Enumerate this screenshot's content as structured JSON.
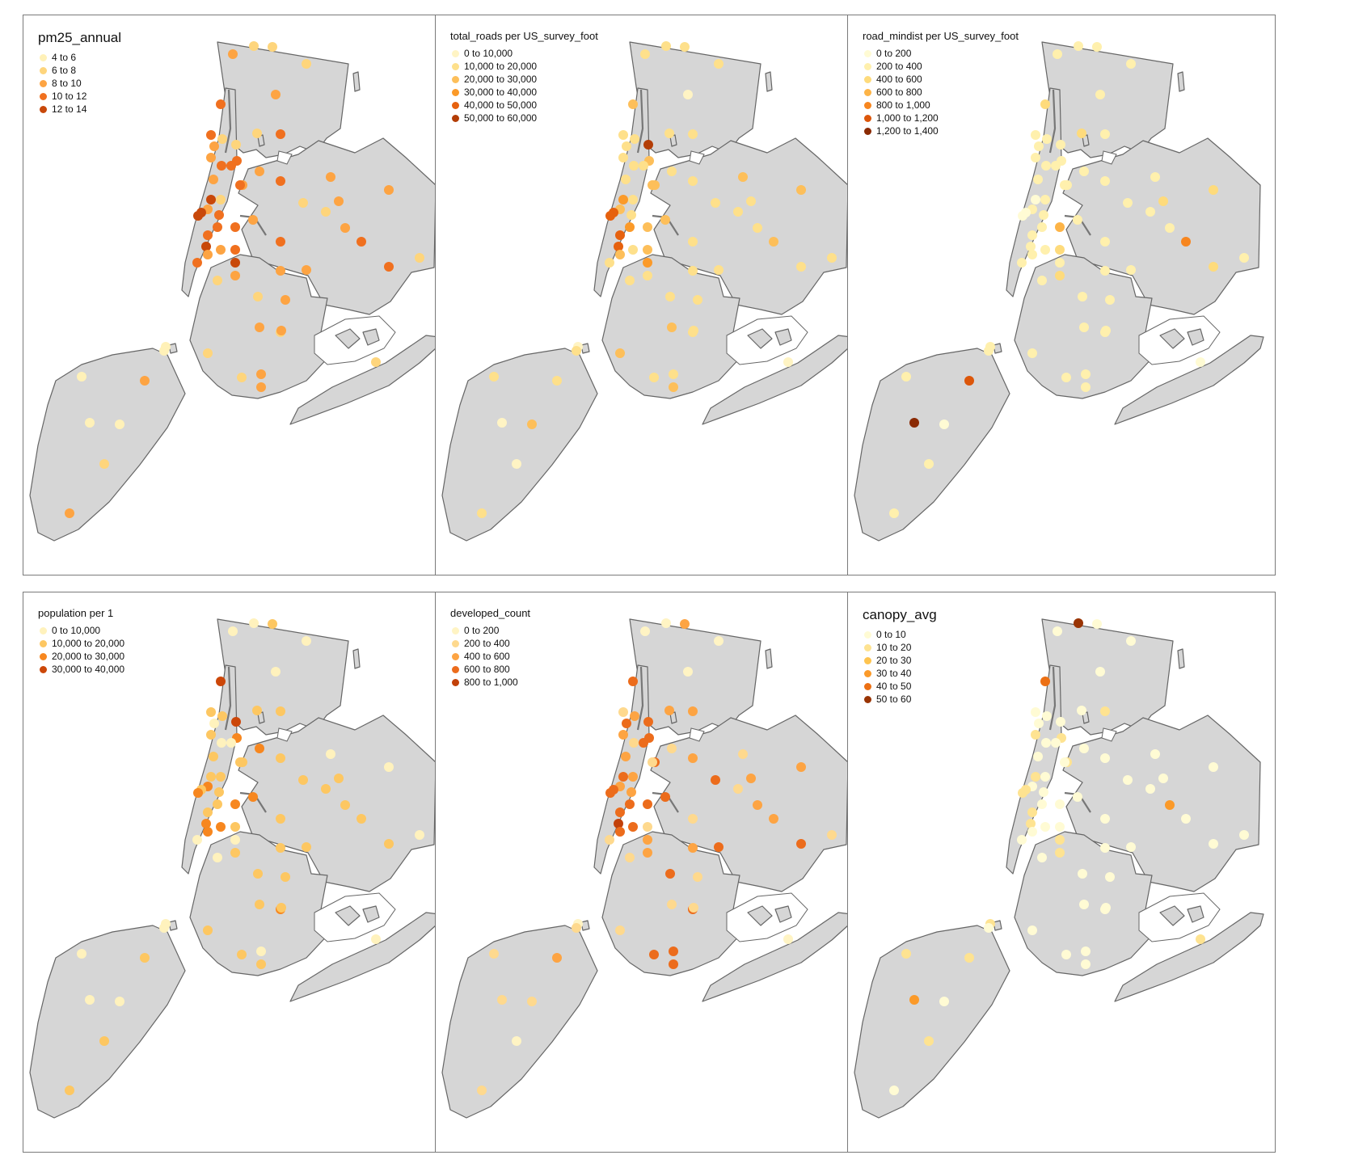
{
  "panels": [
    {
      "title": "pm25_annual",
      "legend": [
        {
          "label": "4 to 6",
          "color": "#fff1b8"
        },
        {
          "label": "6 to 8",
          "color": "#fed57c"
        },
        {
          "label": "8 to 10",
          "color": "#fda443"
        },
        {
          "label": "10 to 12",
          "color": "#f0701f"
        },
        {
          "label": "12 to 14",
          "color": "#c8480a"
        }
      ],
      "points": [
        2,
        1,
        1,
        1,
        2,
        3,
        1,
        1,
        3,
        3,
        1,
        2,
        3,
        2,
        2,
        3,
        3,
        2,
        2,
        3,
        2,
        3,
        4,
        1,
        2,
        3,
        4,
        4,
        2,
        3,
        3,
        3,
        4,
        2,
        3,
        3,
        2,
        4,
        1,
        2,
        3,
        1,
        2,
        1,
        2,
        3,
        2,
        1,
        3,
        2,
        2,
        1,
        1,
        2,
        2,
        1,
        1,
        2,
        2,
        2,
        1,
        0,
        0,
        0,
        0,
        0,
        1,
        2,
        2
      ]
    },
    {
      "title": "total_roads per US_survey_foot",
      "legend": [
        {
          "label": "0 to 10,000",
          "color": "#fff4c4"
        },
        {
          "label": "10,000 to 20,000",
          "color": "#fee08b"
        },
        {
          "label": "20,000 to 30,000",
          "color": "#fdbf5a"
        },
        {
          "label": "30,000 to 40,000",
          "color": "#fb9a29"
        },
        {
          "label": "40,000 to 50,000",
          "color": "#e6610e"
        },
        {
          "label": "50,000 to 60,000",
          "color": "#b33d06"
        }
      ],
      "points": [
        1,
        1,
        1,
        1,
        0,
        2,
        5,
        1,
        1,
        1,
        1,
        1,
        2,
        1,
        1,
        1,
        1,
        2,
        1,
        1,
        2,
        2,
        3,
        1,
        2,
        1,
        4,
        4,
        2,
        2,
        3,
        4,
        4,
        1,
        1,
        2,
        2,
        3,
        1,
        1,
        1,
        1,
        1,
        1,
        1,
        2,
        2,
        1,
        1,
        1,
        1,
        1,
        1,
        1,
        2,
        2,
        1,
        1,
        2,
        1,
        0,
        0,
        1,
        1,
        0,
        2,
        0,
        1,
        1
      ]
    },
    {
      "title": "road_mindist per US_survey_foot",
      "legend": [
        {
          "label": "0 to 200",
          "color": "#fffbd4"
        },
        {
          "label": "200 to 400",
          "color": "#fff0ad"
        },
        {
          "label": "400 to 600",
          "color": "#fedb7c"
        },
        {
          "label": "600 to 800",
          "color": "#fdb447"
        },
        {
          "label": "800 to 1,000",
          "color": "#f7861f"
        },
        {
          "label": "1,000 to 1,200",
          "color": "#dc560a"
        },
        {
          "label": "1,200 to 1,400",
          "color": "#8a2a04"
        }
      ],
      "points": [
        1,
        1,
        1,
        1,
        1,
        2,
        1,
        2,
        1,
        1,
        1,
        1,
        1,
        1,
        1,
        1,
        1,
        1,
        1,
        1,
        1,
        1,
        0,
        1,
        1,
        1,
        0,
        0,
        1,
        3,
        1,
        1,
        1,
        1,
        1,
        2,
        1,
        1,
        1,
        2,
        1,
        1,
        2,
        1,
        1,
        4,
        2,
        1,
        2,
        1,
        1,
        1,
        1,
        1,
        1,
        1,
        1,
        1,
        1,
        1,
        0,
        1,
        1,
        1,
        6,
        0,
        1,
        1,
        5
      ]
    },
    {
      "title": "population per 1",
      "legend": [
        {
          "label": "0 to 10,000",
          "color": "#fff2bd"
        },
        {
          "label": "10,000 to 20,000",
          "color": "#fdc762"
        },
        {
          "label": "20,000 to 30,000",
          "color": "#f7871f"
        },
        {
          "label": "30,000 to 40,000",
          "color": "#cc4709"
        }
      ],
      "points": [
        0,
        0,
        1,
        0,
        0,
        3,
        3,
        1,
        1,
        1,
        1,
        0,
        2,
        2,
        1,
        0,
        0,
        1,
        1,
        1,
        0,
        1,
        1,
        1,
        2,
        1,
        1,
        2,
        2,
        2,
        1,
        1,
        2,
        2,
        0,
        1,
        2,
        0,
        0,
        1,
        1,
        1,
        1,
        1,
        1,
        1,
        0,
        0,
        1,
        1,
        1,
        1,
        2,
        1,
        1,
        1,
        1,
        0,
        1,
        1,
        0,
        0,
        0,
        0,
        0,
        0,
        1,
        1,
        1
      ]
    },
    {
      "title": "developed_count",
      "legend": [
        {
          "label": "0 to 200",
          "color": "#fff4c4"
        },
        {
          "label": "200 to 400",
          "color": "#fed98e"
        },
        {
          "label": "400 to 600",
          "color": "#fda443"
        },
        {
          "label": "600 to 800",
          "color": "#ec6c1c"
        },
        {
          "label": "800 to 1,000",
          "color": "#c2410a"
        }
      ],
      "points": [
        0,
        0,
        2,
        0,
        0,
        3,
        3,
        2,
        2,
        1,
        2,
        3,
        3,
        1,
        2,
        1,
        3,
        3,
        2,
        2,
        1,
        1,
        3,
        2,
        2,
        2,
        3,
        3,
        3,
        3,
        3,
        3,
        4,
        3,
        1,
        1,
        3,
        2,
        1,
        2,
        1,
        3,
        2,
        1,
        2,
        2,
        2,
        1,
        3,
        3,
        2,
        3,
        3,
        1,
        1,
        1,
        3,
        3,
        3,
        1,
        0,
        0,
        1,
        1,
        1,
        1,
        0,
        1,
        2
      ]
    },
    {
      "title": "canopy_avg",
      "legend": [
        {
          "label": "0 to 10",
          "color": "#fffbd4"
        },
        {
          "label": "10 to 20",
          "color": "#fee391"
        },
        {
          "label": "20 to 30",
          "color": "#fec44f"
        },
        {
          "label": "30 to 40",
          "color": "#fb9a29"
        },
        {
          "label": "40 to 50",
          "color": "#ec7014"
        },
        {
          "label": "50 to 60",
          "color": "#993404"
        }
      ],
      "points": [
        0,
        5,
        0,
        0,
        0,
        4,
        0,
        0,
        1,
        0,
        0,
        0,
        1,
        0,
        1,
        0,
        0,
        1,
        0,
        0,
        0,
        0,
        1,
        0,
        0,
        0,
        1,
        1,
        0,
        0,
        0,
        1,
        1,
        0,
        0,
        0,
        0,
        1,
        0,
        1,
        0,
        0,
        0,
        0,
        3,
        0,
        0,
        0,
        0,
        0,
        0,
        0,
        0,
        0,
        0,
        0,
        0,
        0,
        0,
        0,
        1,
        1,
        0,
        1,
        3,
        0,
        1,
        0,
        1
      ]
    }
  ]
}
